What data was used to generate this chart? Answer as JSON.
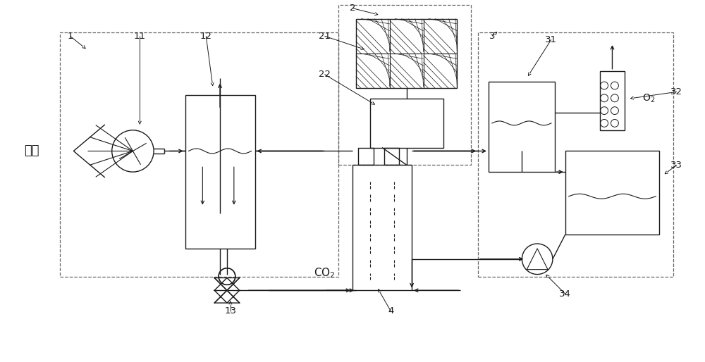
{
  "bg_color": "#ffffff",
  "lc": "#1a1a1a",
  "dc": "#555555",
  "fig_w": 10.0,
  "fig_h": 5.14
}
